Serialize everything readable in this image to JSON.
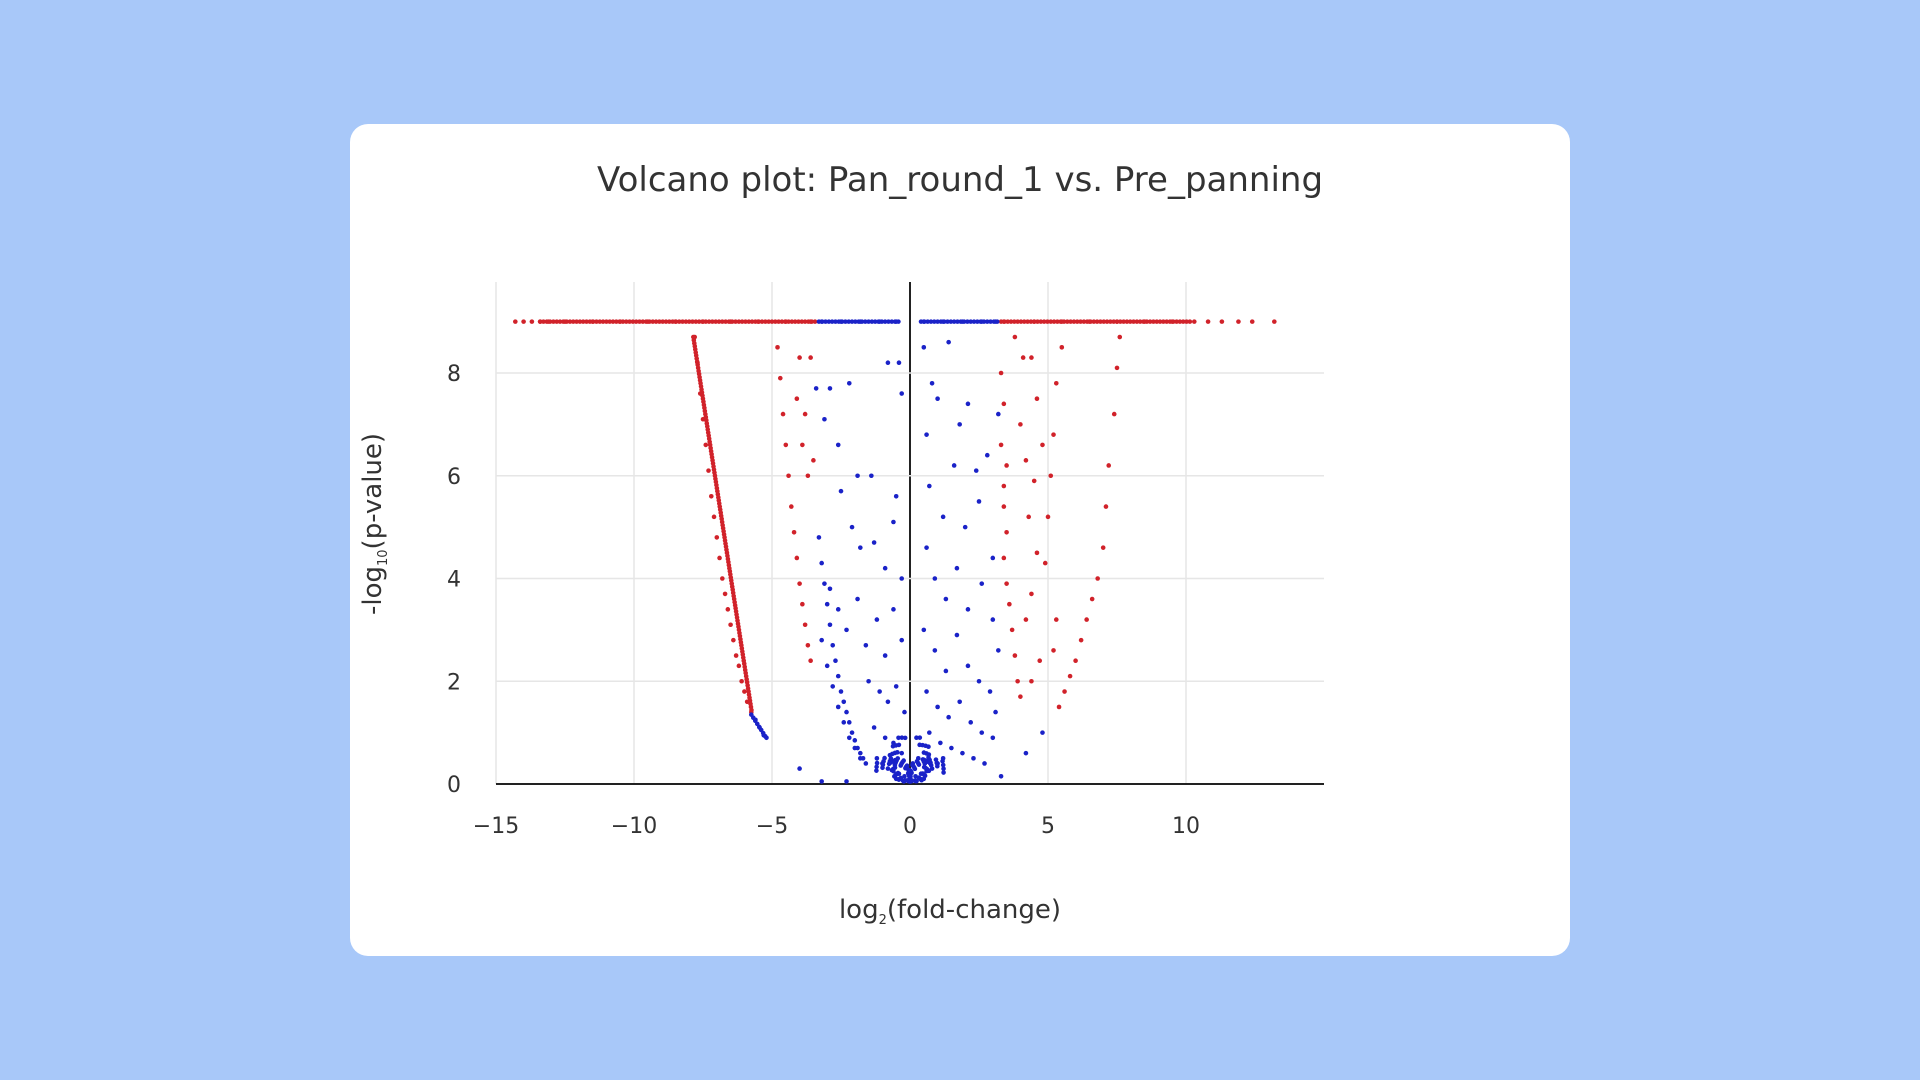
{
  "chart_data": {
    "type": "scatter",
    "title": "Volcano plot: Pan_round_1 vs. Pre_panning",
    "xlabel_main": "log",
    "xlabel_sub": "2",
    "xlabel_tail": "(fold-change)",
    "ylabel_main": "-log",
    "ylabel_sub": "10",
    "ylabel_tail": "(p-value)",
    "xlim": [
      -15,
      15
    ],
    "ylim": [
      0,
      9.2
    ],
    "xticks": [
      -15,
      -10,
      -5,
      0,
      5,
      10
    ],
    "xtick_labels": [
      "−15",
      "−10",
      "−5",
      "0",
      "5",
      "10"
    ],
    "yticks": [
      0,
      2,
      4,
      6,
      8
    ],
    "ytick_labels": [
      "0",
      "2",
      "4",
      "6",
      "8"
    ],
    "grid": true,
    "legend": "none",
    "colors": {
      "significant": "#d1222a",
      "not_significant": "#1a22c8"
    },
    "series": [
      {
        "values_description": "cap",
        "points": [
          [
            -14.3,
            9.0
          ],
          [
            -14.0,
            9.0
          ],
          [
            -13.7,
            9.0
          ],
          [
            -13.4,
            9.0
          ],
          [
            -13.1,
            9.0
          ],
          [
            -12.5,
            9.0
          ],
          [
            -11.5,
            9.0
          ],
          [
            -10.5,
            9.0
          ],
          [
            -9.5,
            9.0
          ],
          [
            -8.5,
            9.0
          ],
          [
            -7.5,
            9.0
          ],
          [
            -6.5,
            9.0
          ],
          [
            -5.5,
            9.0
          ],
          [
            -4.5,
            9.0
          ],
          [
            -3.6,
            9.0
          ],
          [
            3.4,
            9.0
          ],
          [
            4.5,
            9.0
          ],
          [
            5.5,
            9.0
          ],
          [
            6.5,
            9.0
          ],
          [
            7.5,
            9.0
          ],
          [
            8.5,
            9.0
          ],
          [
            9.5,
            9.0
          ],
          [
            10.3,
            9.0
          ],
          [
            10.8,
            9.0
          ],
          [
            11.3,
            9.0
          ],
          [
            11.9,
            9.0
          ],
          [
            12.4,
            9.0
          ],
          [
            13.2,
            9.0
          ]
        ]
      },
      {
        "values_description": "cap-blue",
        "points": [
          [
            -3.2,
            9.0
          ],
          [
            -2.5,
            9.0
          ],
          [
            -1.8,
            9.0
          ],
          [
            -1.1,
            9.0
          ],
          [
            -0.5,
            9.0
          ],
          [
            0.5,
            9.0
          ],
          [
            1.2,
            9.0
          ],
          [
            1.9,
            9.0
          ],
          [
            2.6,
            9.0
          ],
          [
            3.1,
            9.0
          ]
        ]
      },
      {
        "values_description": "left-curve",
        "points": [
          [
            -7.8,
            8.7
          ],
          [
            -7.7,
            8.2
          ],
          [
            -7.6,
            7.6
          ],
          [
            -7.5,
            7.1
          ],
          [
            -7.4,
            6.6
          ],
          [
            -7.3,
            6.1
          ],
          [
            -7.2,
            5.6
          ],
          [
            -7.1,
            5.2
          ],
          [
            -7.0,
            4.8
          ],
          [
            -6.9,
            4.4
          ],
          [
            -6.8,
            4.0
          ],
          [
            -6.7,
            3.7
          ],
          [
            -6.6,
            3.4
          ],
          [
            -6.5,
            3.1
          ],
          [
            -6.4,
            2.8
          ],
          [
            -6.3,
            2.5
          ],
          [
            -6.2,
            2.3
          ],
          [
            -6.1,
            2.0
          ],
          [
            -6.0,
            1.8
          ],
          [
            -5.9,
            1.6
          ],
          [
            -5.75,
            1.4
          ]
        ]
      },
      {
        "values_description": "left-curve-blue",
        "points": [
          [
            -5.6,
            1.25
          ],
          [
            -5.45,
            1.1
          ],
          [
            -5.3,
            0.95
          ],
          [
            -5.2,
            0.9
          ]
        ]
      },
      {
        "values_description": "left-inner-red",
        "points": [
          [
            -4.8,
            8.5
          ],
          [
            -4.7,
            7.9
          ],
          [
            -4.6,
            7.2
          ],
          [
            -4.5,
            6.6
          ],
          [
            -4.4,
            6.0
          ],
          [
            -4.3,
            5.4
          ],
          [
            -4.2,
            4.9
          ],
          [
            -4.1,
            4.4
          ],
          [
            -4.0,
            3.9
          ],
          [
            -3.9,
            3.5
          ],
          [
            -3.8,
            3.1
          ],
          [
            -3.7,
            2.7
          ],
          [
            -3.6,
            2.4
          ],
          [
            -4.0,
            8.3
          ],
          [
            -3.6,
            8.3
          ],
          [
            -4.1,
            7.5
          ],
          [
            -3.8,
            7.2
          ],
          [
            -3.9,
            6.6
          ],
          [
            -3.5,
            6.3
          ],
          [
            -3.7,
            6.0
          ]
        ]
      },
      {
        "values_description": "right-red",
        "points": [
          [
            3.3,
            8.0
          ],
          [
            3.4,
            7.4
          ],
          [
            3.3,
            6.6
          ],
          [
            3.5,
            6.2
          ],
          [
            3.4,
            5.8
          ],
          [
            3.4,
            5.4
          ],
          [
            3.5,
            4.9
          ],
          [
            3.4,
            4.4
          ],
          [
            3.5,
            3.9
          ],
          [
            3.6,
            3.5
          ],
          [
            3.7,
            3.0
          ],
          [
            3.8,
            2.5
          ],
          [
            3.9,
            2.0
          ],
          [
            4.0,
            1.7
          ],
          [
            3.8,
            8.7
          ],
          [
            4.1,
            8.3
          ],
          [
            4.4,
            8.3
          ],
          [
            4.0,
            7.0
          ],
          [
            4.2,
            6.3
          ],
          [
            4.6,
            7.5
          ],
          [
            4.8,
            6.6
          ],
          [
            4.5,
            5.9
          ],
          [
            4.3,
            5.2
          ],
          [
            4.6,
            4.5
          ],
          [
            4.4,
            3.7
          ],
          [
            4.2,
            3.2
          ],
          [
            4.7,
            2.4
          ],
          [
            4.4,
            2.0
          ],
          [
            5.5,
            8.5
          ],
          [
            5.3,
            7.8
          ],
          [
            5.2,
            6.8
          ],
          [
            5.1,
            6.0
          ],
          [
            5.0,
            5.2
          ],
          [
            4.9,
            4.3
          ],
          [
            5.3,
            3.2
          ],
          [
            5.2,
            2.6
          ],
          [
            7.6,
            8.7
          ],
          [
            7.5,
            8.1
          ],
          [
            7.4,
            7.2
          ],
          [
            7.2,
            6.2
          ],
          [
            7.1,
            5.4
          ],
          [
            7.0,
            4.6
          ],
          [
            6.8,
            4.0
          ],
          [
            6.6,
            3.6
          ],
          [
            6.4,
            3.2
          ],
          [
            6.2,
            2.8
          ],
          [
            6.0,
            2.4
          ],
          [
            5.8,
            2.1
          ],
          [
            5.6,
            1.8
          ],
          [
            5.4,
            1.5
          ]
        ]
      },
      {
        "values_description": "center-blue",
        "points": [
          [
            -3.3,
            4.8
          ],
          [
            -3.2,
            4.3
          ],
          [
            -3.1,
            3.9
          ],
          [
            -3.0,
            3.5
          ],
          [
            -2.9,
            3.1
          ],
          [
            -2.8,
            2.7
          ],
          [
            -2.7,
            2.4
          ],
          [
            -2.6,
            2.1
          ],
          [
            -2.5,
            1.8
          ],
          [
            -2.4,
            1.6
          ],
          [
            -2.3,
            1.4
          ],
          [
            -2.2,
            1.2
          ],
          [
            -2.1,
            1.0
          ],
          [
            -2.0,
            0.85
          ],
          [
            -1.9,
            0.7
          ],
          [
            -1.8,
            0.6
          ],
          [
            -1.7,
            0.5
          ],
          [
            -1.6,
            0.4
          ],
          [
            -3.2,
            2.8
          ],
          [
            -3.0,
            2.3
          ],
          [
            -2.8,
            1.9
          ],
          [
            -2.6,
            1.5
          ],
          [
            -2.4,
            1.2
          ],
          [
            -2.2,
            0.9
          ],
          [
            -2.0,
            0.7
          ],
          [
            -1.8,
            0.5
          ],
          [
            -3.4,
            7.7
          ],
          [
            -3.1,
            7.1
          ],
          [
            -2.9,
            7.7
          ],
          [
            -2.6,
            6.6
          ],
          [
            -2.2,
            7.8
          ],
          [
            -1.9,
            6.0
          ],
          [
            -1.4,
            6.0
          ],
          [
            -0.8,
            8.2
          ],
          [
            -0.4,
            8.2
          ],
          [
            -0.3,
            7.6
          ],
          [
            -0.5,
            5.6
          ],
          [
            -2.5,
            5.7
          ],
          [
            -2.1,
            5.0
          ],
          [
            -1.8,
            4.6
          ],
          [
            -1.3,
            4.7
          ],
          [
            -0.9,
            4.2
          ],
          [
            -0.6,
            5.1
          ],
          [
            -0.3,
            4.0
          ],
          [
            -2.9,
            3.8
          ],
          [
            -2.6,
            3.4
          ],
          [
            -2.3,
            3.0
          ],
          [
            -1.9,
            3.6
          ],
          [
            -1.6,
            2.7
          ],
          [
            -1.2,
            3.2
          ],
          [
            -0.9,
            2.5
          ],
          [
            -0.6,
            3.4
          ],
          [
            -0.3,
            2.8
          ],
          [
            -1.5,
            2.0
          ],
          [
            -1.1,
            1.8
          ],
          [
            -0.8,
            1.6
          ],
          [
            -0.5,
            1.9
          ],
          [
            -0.2,
            1.4
          ],
          [
            -1.3,
            1.1
          ],
          [
            -0.9,
            0.9
          ],
          [
            -0.6,
            0.8
          ],
          [
            -0.3,
            0.6
          ],
          [
            -1.2,
            0.5
          ],
          [
            -1.0,
            0.4
          ],
          [
            -0.8,
            0.3
          ],
          [
            -0.6,
            0.25
          ],
          [
            -0.4,
            0.2
          ],
          [
            -0.2,
            0.15
          ],
          [
            0.0,
            0.1
          ],
          [
            0.2,
            0.15
          ],
          [
            0.4,
            0.2
          ],
          [
            0.6,
            0.25
          ],
          [
            0.8,
            0.3
          ],
          [
            1.0,
            0.4
          ],
          [
            1.2,
            0.5
          ],
          [
            -0.5,
            0.1
          ],
          [
            0.5,
            0.1
          ],
          [
            -0.1,
            0.3
          ],
          [
            0.1,
            0.4
          ],
          [
            0.3,
            0.5
          ],
          [
            0.5,
            8.5
          ],
          [
            0.8,
            7.8
          ],
          [
            0.6,
            6.8
          ],
          [
            1.0,
            7.5
          ],
          [
            1.4,
            8.6
          ],
          [
            1.8,
            7.0
          ],
          [
            2.1,
            7.4
          ],
          [
            2.4,
            6.1
          ],
          [
            2.8,
            6.4
          ],
          [
            3.2,
            7.2
          ],
          [
            0.7,
            5.8
          ],
          [
            1.2,
            5.2
          ],
          [
            1.6,
            6.2
          ],
          [
            2.0,
            5.0
          ],
          [
            2.5,
            5.5
          ],
          [
            3.0,
            4.4
          ],
          [
            0.6,
            4.6
          ],
          [
            0.9,
            4.0
          ],
          [
            1.3,
            3.6
          ],
          [
            1.7,
            4.2
          ],
          [
            2.1,
            3.4
          ],
          [
            2.6,
            3.9
          ],
          [
            3.0,
            3.2
          ],
          [
            3.2,
            2.6
          ],
          [
            0.5,
            3.0
          ],
          [
            0.9,
            2.6
          ],
          [
            1.3,
            2.2
          ],
          [
            1.7,
            2.9
          ],
          [
            2.1,
            2.3
          ],
          [
            2.5,
            2.0
          ],
          [
            2.9,
            1.8
          ],
          [
            3.1,
            1.4
          ],
          [
            0.6,
            1.8
          ],
          [
            1.0,
            1.5
          ],
          [
            1.4,
            1.3
          ],
          [
            1.8,
            1.6
          ],
          [
            2.2,
            1.2
          ],
          [
            2.6,
            1.0
          ],
          [
            3.0,
            0.9
          ],
          [
            0.7,
            1.0
          ],
          [
            1.1,
            0.8
          ],
          [
            1.5,
            0.7
          ],
          [
            1.9,
            0.6
          ],
          [
            2.3,
            0.5
          ],
          [
            2.7,
            0.4
          ],
          [
            3.3,
            0.15
          ],
          [
            4.2,
            0.6
          ],
          [
            4.8,
            1.0
          ],
          [
            -4.0,
            0.3
          ],
          [
            -3.2,
            0.05
          ],
          [
            -2.3,
            0.05
          ]
        ]
      }
    ]
  }
}
